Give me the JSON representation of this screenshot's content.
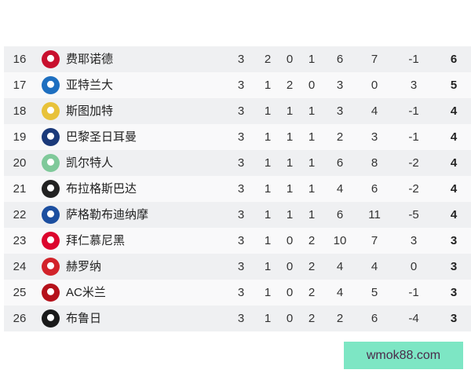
{
  "standings": [
    {
      "rank": "16",
      "team": "费耶诺德",
      "logo": "feyenoord-logo",
      "color": "#c8102e",
      "p": "3",
      "w": "2",
      "d": "0",
      "l": "1",
      "gf": "6",
      "ga": "7",
      "gd": "-1",
      "pts": "6"
    },
    {
      "rank": "17",
      "team": "亚特兰大",
      "logo": "atalanta-logo",
      "color": "#1e6fc0",
      "p": "3",
      "w": "1",
      "d": "2",
      "l": "0",
      "gf": "3",
      "ga": "0",
      "gd": "3",
      "pts": "5"
    },
    {
      "rank": "18",
      "team": "斯图加特",
      "logo": "stuttgart-logo",
      "color": "#e8c23a",
      "p": "3",
      "w": "1",
      "d": "1",
      "l": "1",
      "gf": "3",
      "ga": "4",
      "gd": "-1",
      "pts": "4"
    },
    {
      "rank": "19",
      "team": "巴黎圣日耳曼",
      "logo": "psg-logo",
      "color": "#1b3a7a",
      "p": "3",
      "w": "1",
      "d": "1",
      "l": "1",
      "gf": "2",
      "ga": "3",
      "gd": "-1",
      "pts": "4"
    },
    {
      "rank": "20",
      "team": "凯尔特人",
      "logo": "celtic-logo",
      "color": "#7fc99a",
      "p": "3",
      "w": "1",
      "d": "1",
      "l": "1",
      "gf": "6",
      "ga": "8",
      "gd": "-2",
      "pts": "4"
    },
    {
      "rank": "21",
      "team": "布拉格斯巴达",
      "logo": "sparta-prague-logo",
      "color": "#222222",
      "p": "3",
      "w": "1",
      "d": "1",
      "l": "1",
      "gf": "4",
      "ga": "6",
      "gd": "-2",
      "pts": "4"
    },
    {
      "rank": "22",
      "team": "萨格勒布迪纳摩",
      "logo": "dinamo-zagreb-logo",
      "color": "#1c4fa0",
      "p": "3",
      "w": "1",
      "d": "1",
      "l": "1",
      "gf": "6",
      "ga": "11",
      "gd": "-5",
      "pts": "4"
    },
    {
      "rank": "23",
      "team": "拜仁慕尼黑",
      "logo": "bayern-logo",
      "color": "#dc052d",
      "p": "3",
      "w": "1",
      "d": "0",
      "l": "2",
      "gf": "10",
      "ga": "7",
      "gd": "3",
      "pts": "3"
    },
    {
      "rank": "24",
      "team": "赫罗纳",
      "logo": "girona-logo",
      "color": "#d2232a",
      "p": "3",
      "w": "1",
      "d": "0",
      "l": "2",
      "gf": "4",
      "ga": "4",
      "gd": "0",
      "pts": "3"
    },
    {
      "rank": "25",
      "team": "AC米兰",
      "logo": "ac-milan-logo",
      "color": "#b5121b",
      "p": "3",
      "w": "1",
      "d": "0",
      "l": "2",
      "gf": "4",
      "ga": "5",
      "gd": "-1",
      "pts": "3"
    },
    {
      "rank": "26",
      "team": "布鲁日",
      "logo": "club-brugge-logo",
      "color": "#1a1a1a",
      "p": "3",
      "w": "1",
      "d": "0",
      "l": "2",
      "gf": "2",
      "ga": "6",
      "gd": "-4",
      "pts": "3"
    }
  ],
  "watermark": "wmok88.com"
}
